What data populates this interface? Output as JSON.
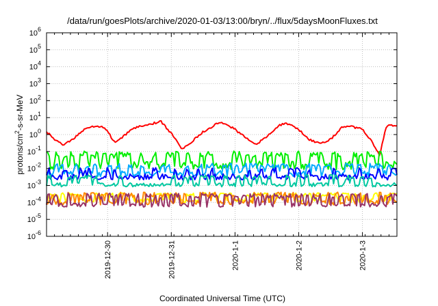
{
  "chart_data": {
    "type": "line",
    "title": "/data/run/goesPlots/archive/2020-01-03/13:00/bryn/../flux/5daysMoonFluxes.txt",
    "xlabel": "Coordinated Universal Time (UTC)",
    "ylabel": {
      "base": "protons/cm",
      "sup": "2",
      "rest": "-s-sr-MeV"
    },
    "y_scale": "log",
    "ylim": [
      1e-06,
      1000000.0
    ],
    "y_ticks": [
      {
        "base": "10",
        "exp": "-6",
        "value": 1e-06
      },
      {
        "base": "10",
        "exp": "-5",
        "value": 1e-05
      },
      {
        "base": "10",
        "exp": "-4",
        "value": 0.0001
      },
      {
        "base": "10",
        "exp": "-3",
        "value": 0.001
      },
      {
        "base": "10",
        "exp": "-2",
        "value": 0.01
      },
      {
        "base": "10",
        "exp": "-1",
        "value": 0.1
      },
      {
        "base": "10",
        "exp": "0",
        "value": 1
      },
      {
        "base": "10",
        "exp": "1",
        "value": 10
      },
      {
        "base": "10",
        "exp": "2",
        "value": 100
      },
      {
        "base": "10",
        "exp": "3",
        "value": 1000
      },
      {
        "base": "10",
        "exp": "4",
        "value": 10000
      },
      {
        "base": "10",
        "exp": "5",
        "value": 100000
      },
      {
        "base": "10",
        "exp": "6",
        "value": 1000000
      }
    ],
    "xlim": [
      "2019-12-29 01:00",
      "2020-01-03 13:00"
    ],
    "x_ticks": [
      {
        "label": "2019-12-30",
        "time": "2019-12-30 00:00"
      },
      {
        "label": "2019-12-31",
        "time": "2019-12-31 00:00"
      },
      {
        "label": "2020-1-1",
        "time": "2020-01-01 00:00"
      },
      {
        "label": "2020-1-2",
        "time": "2020-01-02 00:00"
      },
      {
        "label": "2020-1-3",
        "time": "2020-01-03 00:00"
      }
    ],
    "grid": true,
    "legend": "none",
    "series": [
      {
        "color": "#ff0000",
        "style": "smooth",
        "seed": 1,
        "jitter": 0.06,
        "points": [
          [
            "2019-12-29 01:00",
            1.5
          ],
          [
            "2019-12-29 04:00",
            0.5
          ],
          [
            "2019-12-29 07:00",
            0.25
          ],
          [
            "2019-12-29 10:00",
            0.4
          ],
          [
            "2019-12-29 14:00",
            1.5
          ],
          [
            "2019-12-29 18:00",
            3.0
          ],
          [
            "2019-12-29 22:00",
            3.0
          ],
          [
            "2019-12-30 00:00",
            1.5
          ],
          [
            "2019-12-30 03:00",
            0.3
          ],
          [
            "2019-12-30 05:00",
            0.6
          ],
          [
            "2019-12-30 10:00",
            2.5
          ],
          [
            "2019-12-30 16:00",
            4.0
          ],
          [
            "2019-12-30 20:00",
            6.0
          ],
          [
            "2019-12-31 02:00",
            0.5
          ],
          [
            "2019-12-31 04:00",
            0.15
          ],
          [
            "2019-12-31 07:00",
            0.3
          ],
          [
            "2019-12-31 12:00",
            1.5
          ],
          [
            "2019-12-31 18:00",
            5.0
          ],
          [
            "2019-12-31 21:00",
            4.0
          ],
          [
            "2020-01-01 00:00",
            2.0
          ],
          [
            "2020-01-01 05:00",
            0.5
          ],
          [
            "2020-01-01 08:00",
            0.25
          ],
          [
            "2020-01-01 12:00",
            0.8
          ],
          [
            "2020-01-01 16:00",
            3.0
          ],
          [
            "2020-01-01 19:00",
            5.0
          ],
          [
            "2020-01-02 00:00",
            2.0
          ],
          [
            "2020-01-02 04:00",
            0.5
          ],
          [
            "2020-01-02 08:00",
            0.3
          ],
          [
            "2020-01-02 12:00",
            0.5
          ],
          [
            "2020-01-02 16:00",
            2.5
          ],
          [
            "2020-01-02 20:00",
            3.0
          ],
          [
            "2020-01-03 00:00",
            2.0
          ],
          [
            "2020-01-03 03:00",
            0.5
          ],
          [
            "2020-01-03 05:30",
            0.12
          ],
          [
            "2020-01-03 06:30",
            0.06
          ],
          [
            "2020-01-03 07:30",
            0.3
          ],
          [
            "2020-01-03 09:00",
            3.0
          ],
          [
            "2020-01-03 11:00",
            3.5
          ],
          [
            "2020-01-03 13:00",
            3.0
          ]
        ]
      },
      {
        "color": "#00ee00",
        "style": "spiky",
        "level": 0.015,
        "noise": 0.25,
        "spike_prob": 0.28,
        "spike_max": 0.85,
        "spike_width": 2,
        "seed": 2
      },
      {
        "color": "#00aaff",
        "style": "spiky",
        "level": 0.005,
        "noise": 0.18,
        "spike_prob": 0.22,
        "spike_max": 0.6,
        "spike_width": 2,
        "seed": 3
      },
      {
        "color": "#0000ff",
        "style": "spiky",
        "level": 0.0032,
        "noise": 0.18,
        "spike_prob": 0.18,
        "spike_max": 0.55,
        "spike_width": 1,
        "seed": 4
      },
      {
        "color": "#00c8a0",
        "style": "spiky",
        "level": 0.0011,
        "noise": 0.12,
        "spike_prob": 0.18,
        "spike_max": 0.6,
        "spike_width": 2,
        "seed": 5
      },
      {
        "color": "#ffff00",
        "style": "spiky",
        "level": 0.00013,
        "noise": 0.12,
        "spike_prob": 0.28,
        "spike_max": 0.45,
        "spike_width": 2,
        "seed": 6
      },
      {
        "color": "#ff8800",
        "style": "spiky",
        "level": 0.0001,
        "noise": 0.15,
        "spike_prob": 0.3,
        "spike_max": 0.6,
        "spike_width": 1,
        "seed": 7
      },
      {
        "color": "#993366",
        "style": "spiky",
        "level": 7e-05,
        "noise": 0.12,
        "spike_prob": 0.33,
        "spike_max": 0.7,
        "spike_width": 1,
        "seed": 8
      }
    ]
  }
}
